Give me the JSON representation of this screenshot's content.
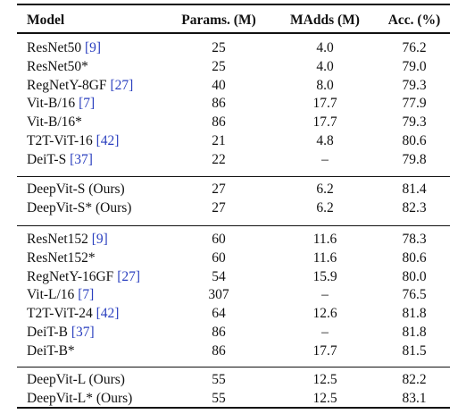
{
  "header": {
    "model": "Model",
    "params": "Params. (M)",
    "madds": "MAdds (M)",
    "acc": "Acc. (%)"
  },
  "groups": [
    {
      "rows": [
        {
          "name": "ResNet50",
          "ref": "[9]",
          "params": "25",
          "madds": "4.0",
          "acc": "76.2"
        },
        {
          "name": "ResNet50*",
          "ref": "",
          "params": "25",
          "madds": "4.0",
          "acc": "79.0"
        },
        {
          "name": "RegNetY-8GF",
          "ref": "[27]",
          "params": "40",
          "madds": "8.0",
          "acc": "79.3"
        },
        {
          "name": "Vit-B/16",
          "ref": "[7]",
          "params": "86",
          "madds": "17.7",
          "acc": "77.9"
        },
        {
          "name": "Vit-B/16*",
          "ref": "",
          "params": "86",
          "madds": "17.7",
          "acc": "79.3"
        },
        {
          "name": "T2T-ViT-16",
          "ref": "[42]",
          "params": "21",
          "madds": "4.8",
          "acc": "80.6"
        },
        {
          "name": "DeiT-S",
          "ref": "[37]",
          "params": "22",
          "madds": "–",
          "acc": "79.8"
        }
      ]
    },
    {
      "rows": [
        {
          "name": "DeepVit-S (Ours)",
          "ref": "",
          "params": "27",
          "madds": "6.2",
          "acc": "81.4"
        },
        {
          "name": "DeepVit-S* (Ours)",
          "ref": "",
          "params": "27",
          "madds": "6.2",
          "acc": "82.3"
        }
      ]
    },
    {
      "rows": [
        {
          "name": "ResNet152",
          "ref": "[9]",
          "params": "60",
          "madds": "11.6",
          "acc": "78.3"
        },
        {
          "name": "ResNet152*",
          "ref": "",
          "params": "60",
          "madds": "11.6",
          "acc": "80.6"
        },
        {
          "name": "RegNetY-16GF",
          "ref": "[27]",
          "params": "54",
          "madds": "15.9",
          "acc": "80.0"
        },
        {
          "name": "Vit-L/16",
          "ref": "[7]",
          "params": "307",
          "madds": "–",
          "acc": "76.5"
        },
        {
          "name": "T2T-ViT-24",
          "ref": "[42]",
          "params": "64",
          "madds": "12.6",
          "acc": "81.8"
        },
        {
          "name": "DeiT-B",
          "ref": "[37]",
          "params": "86",
          "madds": "–",
          "acc": "81.8"
        },
        {
          "name": "DeiT-B*",
          "ref": "",
          "params": "86",
          "madds": "17.7",
          "acc": "81.5"
        }
      ]
    },
    {
      "rows": [
        {
          "name": "DeepVit-L (Ours)",
          "ref": "",
          "params": "55",
          "madds": "12.5",
          "acc": "82.2"
        },
        {
          "name": "DeepVit-L* (Ours)",
          "ref": "",
          "params": "55",
          "madds": "12.5",
          "acc": "83.1"
        }
      ]
    }
  ]
}
